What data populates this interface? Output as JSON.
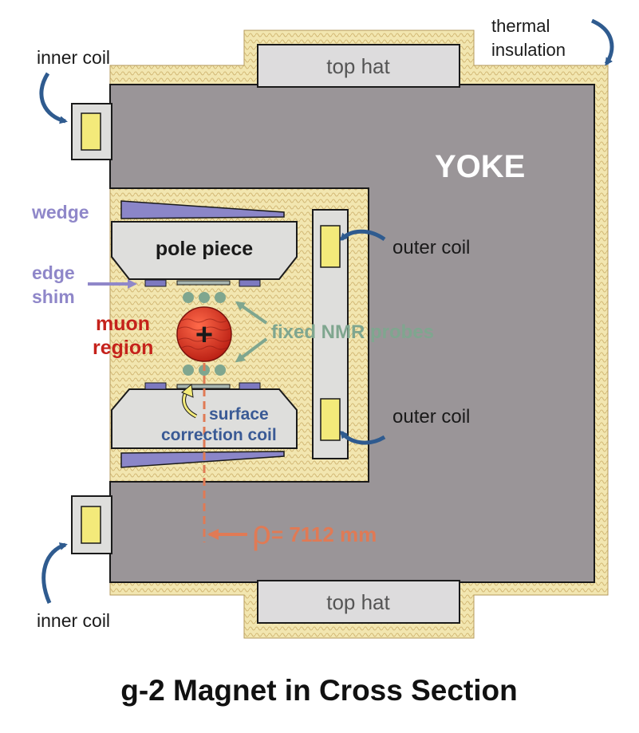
{
  "labels": {
    "thermal_insulation_line1": "thermal",
    "thermal_insulation_line2": "insulation",
    "top_hat_top": "top hat",
    "top_hat_bottom": "top hat",
    "inner_coil_top": "inner coil",
    "inner_coil_bottom": "inner coil",
    "yoke": "YOKE",
    "wedge": "wedge",
    "pole_piece": "pole piece",
    "edge_shim_line1": "edge",
    "edge_shim_line2": "shim",
    "muon_region_line1": "muon",
    "muon_region_line2": "region",
    "muon_charge": "+",
    "fixed_nmr_probes": "fixed NMR probes",
    "outer_coil_top": "outer coil",
    "outer_coil_bottom": "outer coil",
    "surface_correction_line1": "surface",
    "surface_correction_line2": "correction coil",
    "rho_symbol": "ρ",
    "rho_value": " = 7112 mm"
  },
  "title": "g-2 Magnet in Cross Section",
  "colors": {
    "yoke": "#9a9598",
    "insulation": "#f2e6b0",
    "top_hat": "#dddcdd",
    "coil": "#f3ea7a",
    "pole": "#dededc",
    "wedge": "#8b86c8",
    "shim_label": "#8f87c9",
    "muon_label": "#c5221b",
    "muon": "#d83020",
    "nmr": "#7fa68f",
    "arrow": "#2f5b8f",
    "rho": "#e07a55",
    "surface_label": "#3a5a95"
  }
}
